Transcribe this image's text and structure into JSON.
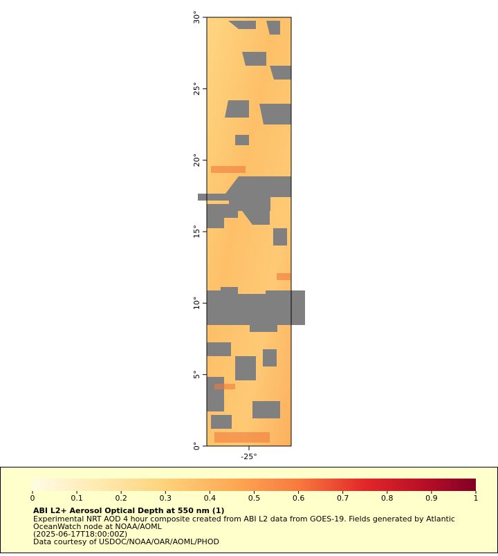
{
  "map": {
    "ylim": [
      0,
      30
    ],
    "yticks": [
      {
        "value": 0,
        "label": "0°"
      },
      {
        "value": 5,
        "label": "5°"
      },
      {
        "value": 10,
        "label": "10°"
      },
      {
        "value": 15,
        "label": "15°"
      },
      {
        "value": 20,
        "label": "20°"
      },
      {
        "value": 25,
        "label": "25°"
      },
      {
        "value": 30,
        "label": "30°"
      }
    ],
    "xlim": [
      -28,
      -22
    ],
    "xticks": [
      {
        "value": -25,
        "label": "-25°"
      }
    ]
  },
  "colorbar": {
    "range": [
      0,
      1
    ],
    "ticks": [
      0,
      0.1,
      0.2,
      0.3,
      0.4,
      0.5,
      0.6,
      0.7,
      0.8,
      0.9,
      1
    ]
  },
  "legend": {
    "title": "ABI L2+ Aerosol Optical Depth at 550 nm (1)",
    "lines": [
      "Experimental NRT AOD 4 hour composite created from ABI L2 data from GOES-19. Fields generated by Atlantic",
      "OceanWatch node at NOAA/AOML",
      "(2025-06-17T18:00:00Z)",
      "Data courtesy of USDOC/NOAA/OAR/AOML/PHOD"
    ]
  }
}
